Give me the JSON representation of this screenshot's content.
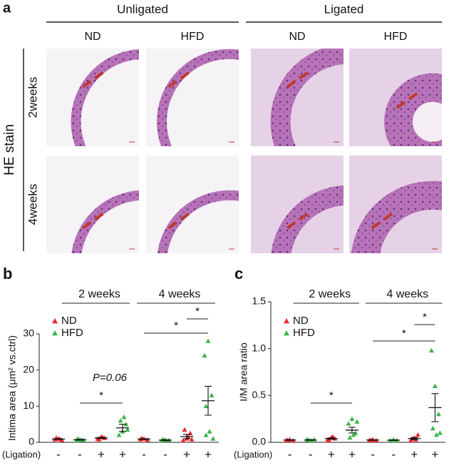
{
  "panel_a": {
    "letter": "a",
    "groups": [
      "Unligated",
      "Ligated"
    ],
    "columns": [
      "ND",
      "HFD",
      "ND",
      "HFD"
    ],
    "rows": [
      "2weeks",
      "4weeks"
    ],
    "stain": "HE stain"
  },
  "chart_data": [
    {
      "type": "dotplot",
      "letter": "b",
      "ylabel": "Intima area (μm² vs.ctrl)",
      "xlabel": "(Ligation)",
      "categories": [
        "-",
        "-",
        "+",
        "+",
        "-",
        "-",
        "+",
        "+"
      ],
      "group_labels": [
        "2 weeks",
        "4 weeks"
      ],
      "ylim": [
        0,
        30
      ],
      "yticks": [
        0,
        10,
        20,
        30
      ],
      "series": [
        {
          "name": "ND",
          "color": "#e8262e",
          "points": [
            [
              0.8,
              1,
              0.6,
              1.2,
              0.9
            ],
            [
              1,
              1.5,
              1.2,
              0.8,
              1.4
            ],
            [
              0.8,
              1,
              0.7,
              1.1
            ],
            [
              0.5,
              1,
              2.5,
              3.5,
              1.5,
              0.8
            ]
          ],
          "mean": [
            0.9,
            1.2,
            0.9,
            1.6
          ],
          "sem": [
            0.1,
            0.15,
            0.1,
            0.6
          ]
        },
        {
          "name": "HFD",
          "color": "#3cb54a",
          "points": [
            [
              0.5,
              0.8,
              0.7,
              1,
              0.6
            ],
            [
              2,
              3,
              5,
              6,
              7,
              3.5
            ],
            [
              0.5,
              0.7,
              0.6,
              0.8
            ],
            [
              24,
              28,
              13,
              10,
              3,
              1,
              2
            ]
          ],
          "mean": [
            0.7,
            4.0,
            0.6,
            11.5
          ],
          "sem": [
            0.1,
            1.0,
            0.1,
            4
          ]
        }
      ],
      "annotations": [
        "*",
        "P=0.06",
        "*",
        "*"
      ]
    },
    {
      "type": "dotplot",
      "letter": "c",
      "ylabel": "I/M area ratio",
      "xlabel": "(Ligation)",
      "categories": [
        "-",
        "-",
        "+",
        "+",
        "-",
        "-",
        "+",
        "+"
      ],
      "group_labels": [
        "2 weeks",
        "4 weeks"
      ],
      "ylim": [
        0,
        1.5
      ],
      "yticks": [
        {
          "value": 0,
          "label": "0.0"
        },
        0.5,
        {
          "value": 1,
          "label": "1.0"
        },
        1.5
      ],
      "series": [
        {
          "name": "ND",
          "color": "#e8262e",
          "points": [
            [
              0.02,
              0.03,
              0.02,
              0.025
            ],
            [
              0.03,
              0.05,
              0.04,
              0.02,
              0.06
            ],
            [
              0.02,
              0.03,
              0.02,
              0.025
            ],
            [
              0.02,
              0.05,
              0.08,
              0.04,
              0.03
            ]
          ],
          "mean": [
            0.025,
            0.04,
            0.025,
            0.04
          ],
          "sem": [
            0.003,
            0.007,
            0.003,
            0.01
          ]
        },
        {
          "name": "HFD",
          "color": "#3cb54a",
          "points": [
            [
              0.03,
              0.02,
              0.03,
              0.025
            ],
            [
              0.2,
              0.25,
              0.1,
              0.05,
              0.08,
              0.22
            ],
            [
              0.02,
              0.03,
              0.02
            ],
            [
              0.98,
              0.6,
              0.3,
              0.15,
              0.08,
              0.1
            ]
          ],
          "mean": [
            0.025,
            0.13,
            0.023,
            0.37
          ],
          "sem": [
            0.003,
            0.03,
            0.003,
            0.15
          ]
        }
      ],
      "annotations": [
        "*",
        "*",
        "*"
      ]
    }
  ]
}
